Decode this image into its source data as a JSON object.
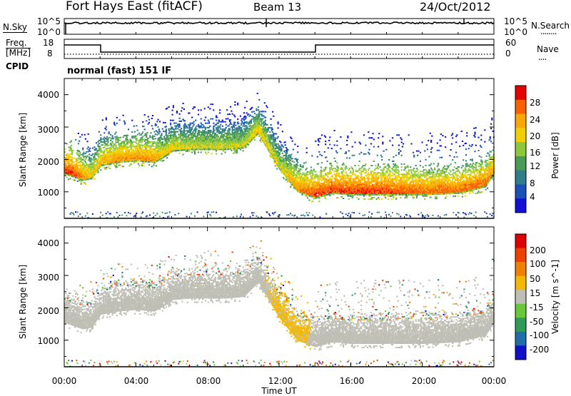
{
  "header": {
    "title": "Fort Hays East (fitACF)",
    "beam": "Beam 13",
    "date": "24/Oct/2012"
  },
  "noise_panel": {
    "left_label": "N.Sky",
    "left_ticks": [
      "10^5",
      "10^0"
    ],
    "right_ticks": [
      "10^5",
      "10^0"
    ],
    "right_label": "N.Search",
    "right_key": "........"
  },
  "freq_panel": {
    "left_label_line1": "Freq.",
    "left_label_line2": "[MHz]",
    "left_ticks": [
      "18",
      "8"
    ],
    "right_ticks": [
      "60",
      "0"
    ],
    "right_label": "Nave",
    "right_key": "....",
    "cpid_label": "CPID"
  },
  "mode_text": "normal (fast) 151 IF",
  "time_axis": {
    "label": "Time UT",
    "ticks": [
      "00:00",
      "04:00",
      "08:00",
      "12:00",
      "16:00",
      "20:00",
      "00:00"
    ]
  },
  "chart_data": [
    {
      "type": "heatmap",
      "name": "power-panel",
      "ylabel": "Slant Range [km]",
      "yticks": [
        "4000",
        "3000",
        "2000",
        "1000"
      ],
      "yrange_km": [
        180,
        4500
      ],
      "xrange_hours": [
        0,
        24
      ],
      "colorbar": {
        "label": "Power [dB]",
        "ticks": [
          "28",
          "24",
          "20",
          "16",
          "12",
          "8",
          "4"
        ],
        "range": [
          0,
          32
        ],
        "colors": [
          "#1010d8",
          "#1c4fb8",
          "#2f7d88",
          "#4a9a58",
          "#8cc83c",
          "#f0d000",
          "#f8a800",
          "#f86000",
          "#e80000"
        ]
      },
      "echo_band": {
        "hours": [
          0,
          0.5,
          1,
          1.5,
          2,
          3,
          4,
          5,
          5.5,
          6,
          7,
          8,
          9,
          10,
          10.8,
          12,
          13,
          13.5,
          14,
          15,
          16,
          18,
          20,
          22,
          23.5,
          24
        ],
        "center_km": [
          1650,
          1550,
          1450,
          1500,
          1900,
          2000,
          2050,
          2000,
          2150,
          2350,
          2400,
          2400,
          2400,
          2450,
          2900,
          1800,
          1100,
          1000,
          900,
          1050,
          1000,
          1000,
          1000,
          1050,
          1250,
          1700
        ],
        "peak_power_db": [
          30,
          30,
          26,
          22,
          24,
          26,
          26,
          26,
          22,
          22,
          20,
          20,
          20,
          20,
          22,
          20,
          26,
          28,
          30,
          30,
          30,
          30,
          28,
          28,
          28,
          26
        ]
      }
    },
    {
      "type": "heatmap",
      "name": "velocity-panel",
      "ylabel": "Slant Range [km]",
      "yticks": [
        "4000",
        "3000",
        "2000",
        "1000"
      ],
      "yrange_km": [
        180,
        4500
      ],
      "xrange_hours": [
        0,
        24
      ],
      "colorbar": {
        "label": "Velocity [m s^-1]",
        "ticks": [
          "200",
          "100",
          "50",
          "15",
          "-15",
          "-50",
          "-100",
          "-200"
        ],
        "range": [
          -250,
          250
        ],
        "colors": [
          "#1010c8",
          "#206ea8",
          "#2e9c58",
          "#68c838",
          "#bebeb4",
          "#f4b800",
          "#f08000",
          "#f04000",
          "#e00000"
        ]
      },
      "echo_band": {
        "hours": [
          0,
          0.5,
          1,
          1.5,
          2,
          3,
          4,
          5,
          5.5,
          6,
          7,
          8,
          9,
          10,
          10.8,
          12,
          13,
          13.5,
          14,
          15,
          16,
          18,
          20,
          22,
          23.5,
          24
        ],
        "center_km": [
          1650,
          1550,
          1450,
          1500,
          1900,
          2000,
          2050,
          2000,
          2150,
          2350,
          2400,
          2400,
          2400,
          2450,
          2900,
          1800,
          1100,
          1000,
          900,
          1050,
          1000,
          1000,
          1000,
          1050,
          1250,
          1700
        ],
        "velocity_ms": [
          0,
          0,
          0,
          0,
          0,
          0,
          0,
          0,
          0,
          0,
          0,
          0,
          0,
          0,
          0,
          40,
          40,
          40,
          0,
          0,
          0,
          0,
          0,
          0,
          0,
          0
        ]
      }
    }
  ]
}
